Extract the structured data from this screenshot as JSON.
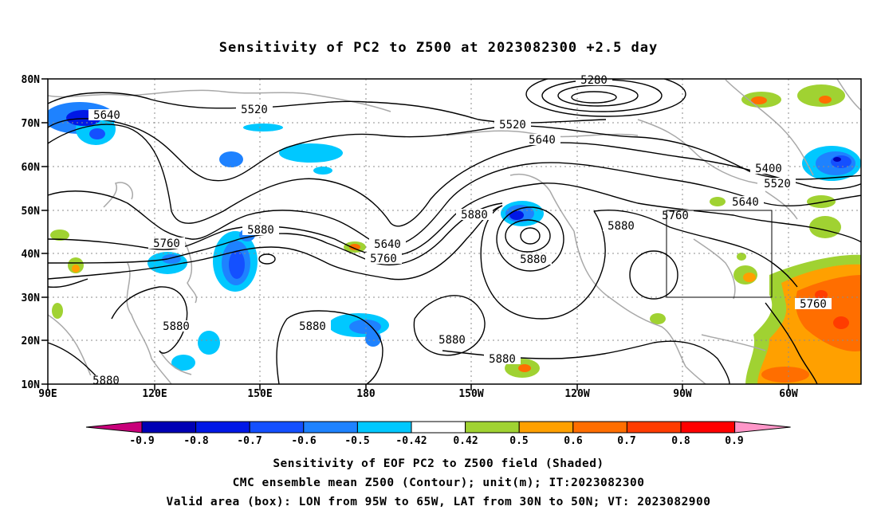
{
  "title": "Sensitivity of PC2 to Z500 at 2023082300 +2.5 day",
  "map": {
    "lon_labels": [
      "90E",
      "120E",
      "150E",
      "180",
      "150W",
      "120W",
      "90W",
      "60W"
    ],
    "lat_labels": [
      "80N",
      "70N",
      "60N",
      "50N",
      "40N",
      "30N",
      "20N",
      "10N"
    ],
    "contour_labels": [
      "5280",
      "5520",
      "5640",
      "5520",
      "5640",
      "5400",
      "5520",
      "5640",
      "5760",
      "5880",
      "5880",
      "5760",
      "5880",
      "5640",
      "5760",
      "5880",
      "5760",
      "5880",
      "5880",
      "5880",
      "5880",
      "5880"
    ],
    "valid_box": {
      "lon_west": -95,
      "lon_east": -65,
      "lat_south": 30,
      "lat_north": 50
    }
  },
  "colorbar": {
    "labels": [
      "-0.9",
      "-0.8",
      "-0.7",
      "-0.6",
      "-0.5",
      "-0.42",
      "0.42",
      "0.5",
      "0.6",
      "0.7",
      "0.8",
      "0.9"
    ],
    "colors": [
      "#0000b4",
      "#0018e6",
      "#1450ff",
      "#1e82ff",
      "#00c8ff",
      "#ffffff",
      "#a0d232",
      "#ffa000",
      "#ff6e00",
      "#ff3c00",
      "#ff0000"
    ],
    "low_color": "#c8007a",
    "high_color": "#ff96c8"
  },
  "captions": {
    "line1": "Sensitivity of EOF PC2 to Z500 field (Shaded)",
    "line2": "CMC ensemble mean Z500 (Contour); unit(m); IT:2023082300",
    "line3": "Valid area (box): LON from 95W to 65W, LAT from 30N to 50N; VT: 2023082900"
  }
}
